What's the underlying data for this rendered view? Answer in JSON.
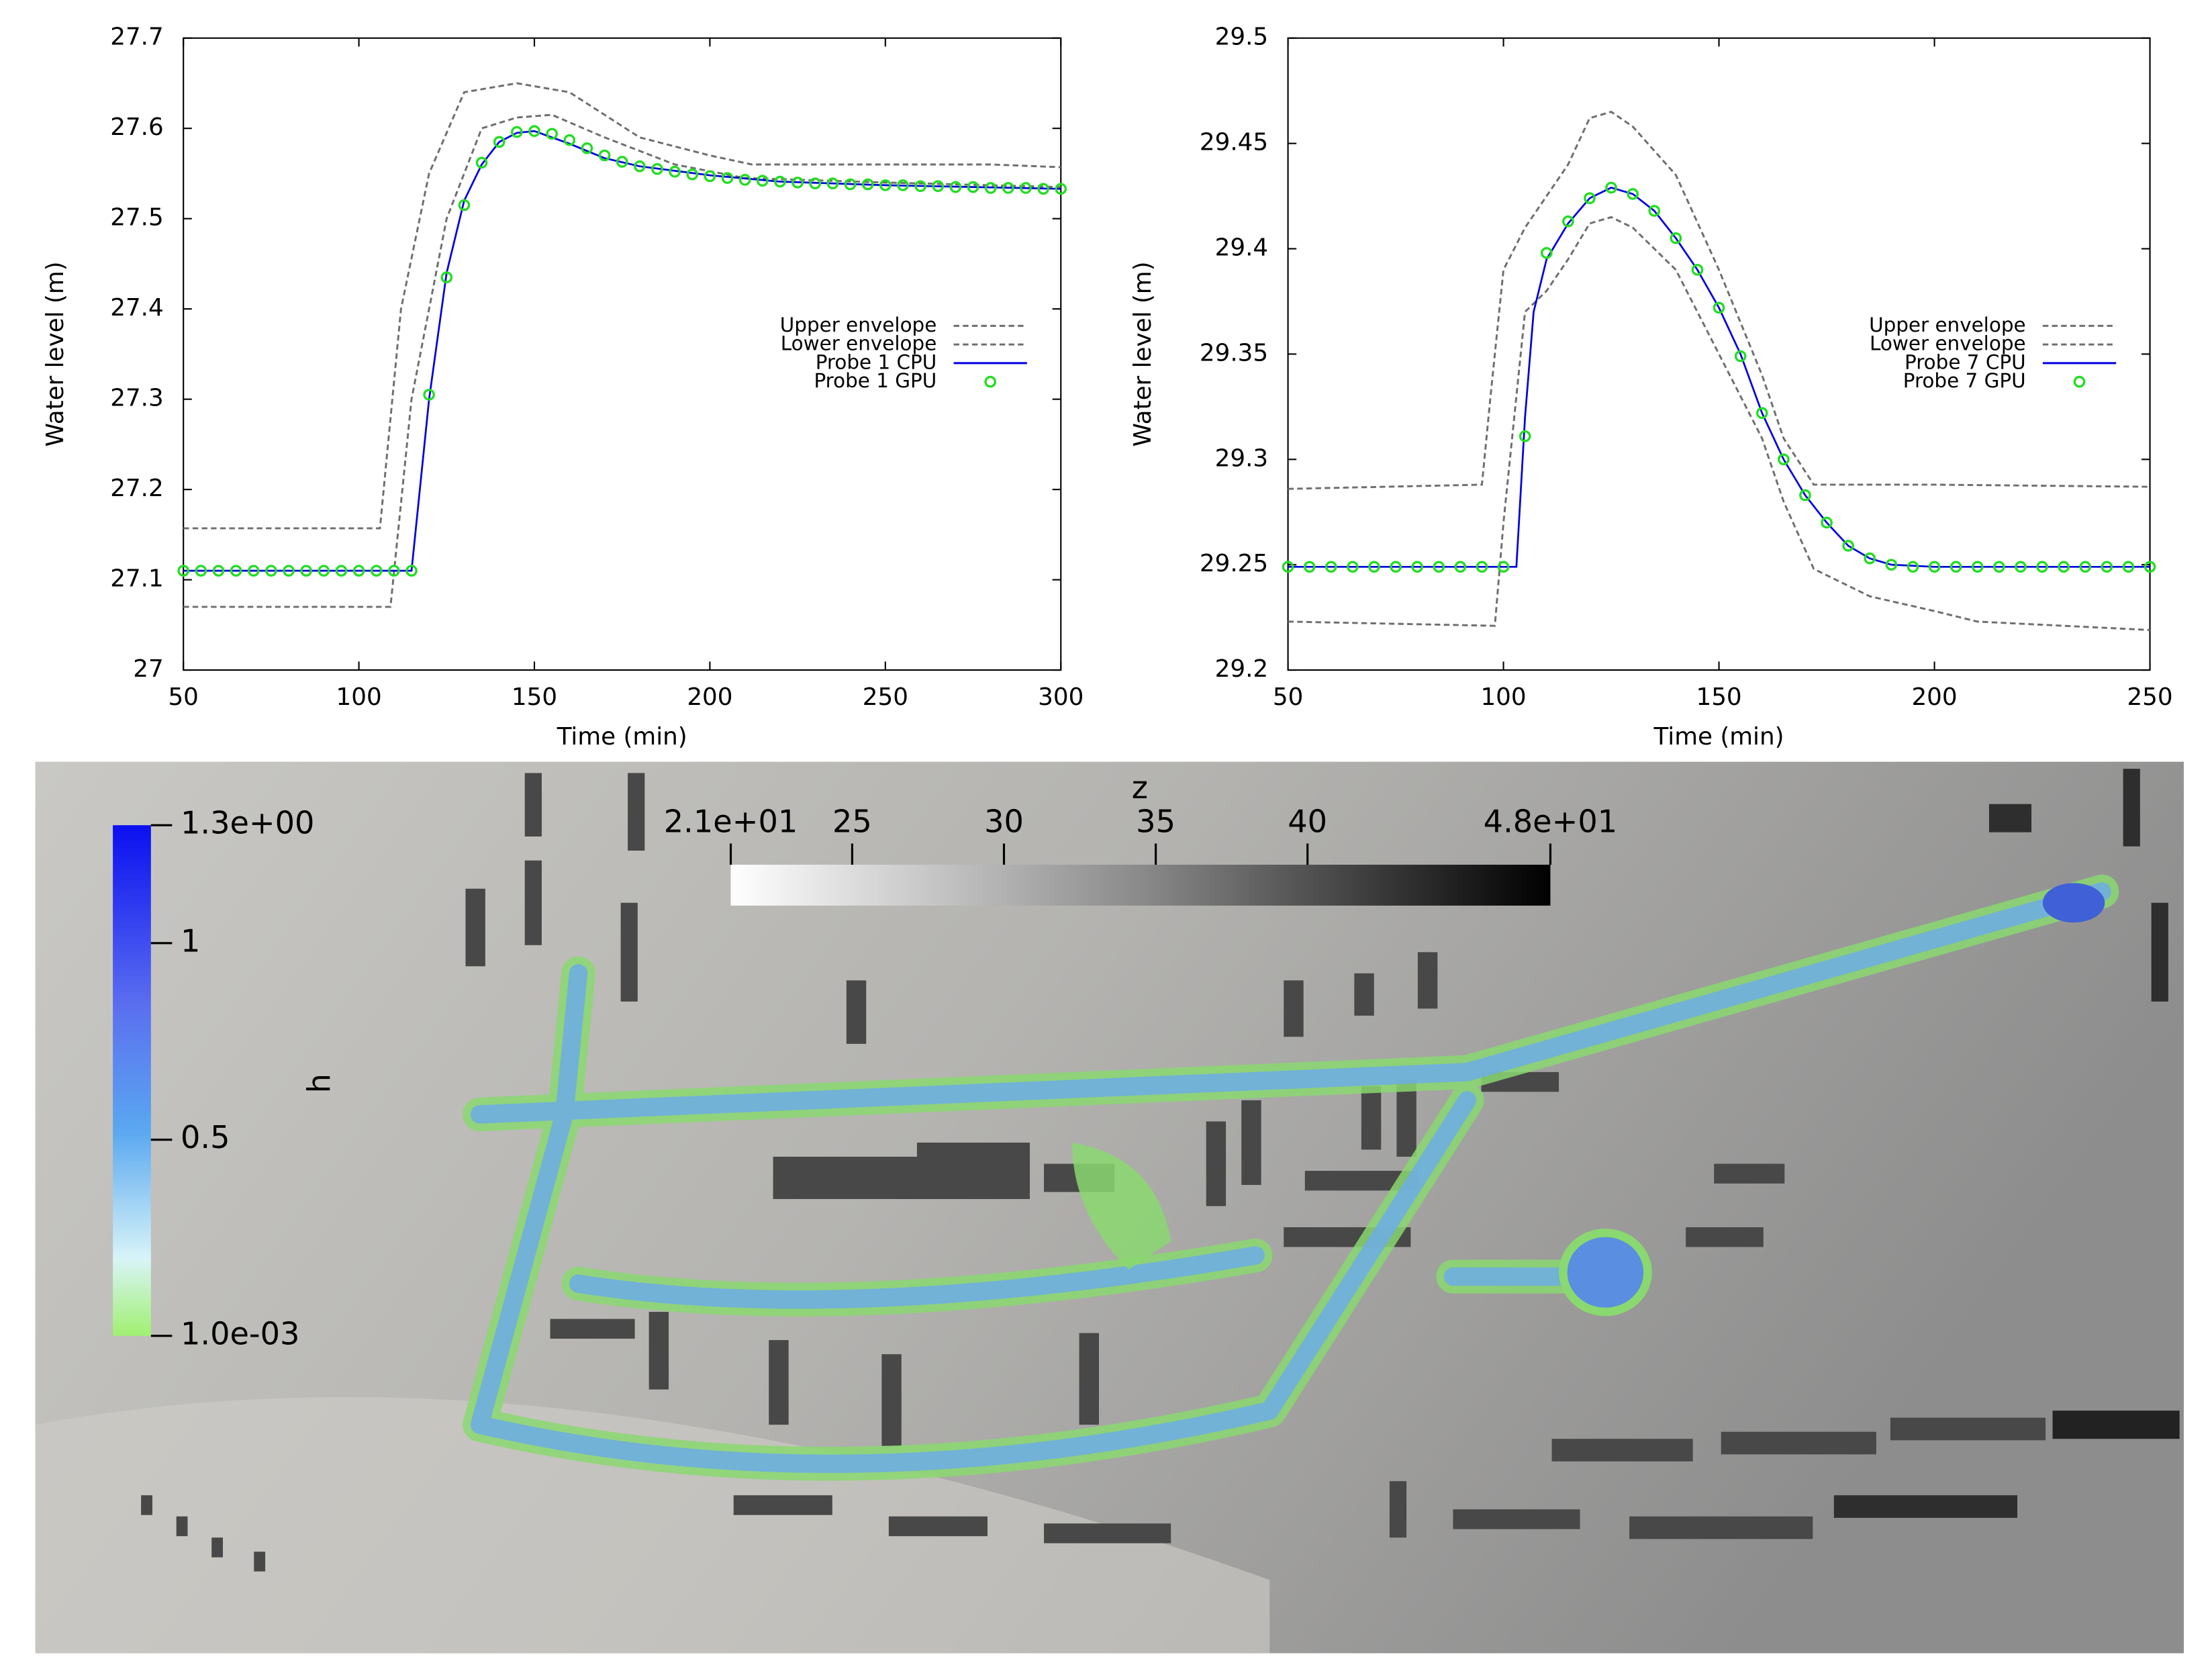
{
  "chart_data": [
    {
      "type": "line",
      "xlabel": "Time (min)",
      "ylabel": "Water level (m)",
      "xlim": [
        50,
        300
      ],
      "xticks": [
        50,
        100,
        150,
        200,
        250,
        300
      ],
      "ylim": [
        27,
        27.7
      ],
      "yticks": [
        27,
        27.1,
        27.2,
        27.3,
        27.4,
        27.5,
        27.6,
        27.7
      ],
      "legend": "right",
      "series": [
        {
          "name": "Upper envelope",
          "color": "#6e6e6e",
          "style": "dashed",
          "x": [
            50,
            106,
            112,
            120,
            130,
            145,
            160,
            180,
            200,
            212,
            250,
            280,
            300
          ],
          "values": [
            27.157,
            27.157,
            27.4,
            27.55,
            27.64,
            27.65,
            27.64,
            27.59,
            27.57,
            27.56,
            27.56,
            27.56,
            27.557
          ]
        },
        {
          "name": "Lower envelope",
          "color": "#6e6e6e",
          "style": "dashed",
          "x": [
            50,
            109,
            115,
            125,
            135,
            145,
            155,
            170,
            190,
            210,
            250,
            300
          ],
          "values": [
            27.07,
            27.07,
            27.3,
            27.5,
            27.6,
            27.612,
            27.615,
            27.59,
            27.56,
            27.545,
            27.54,
            27.535
          ]
        },
        {
          "name": "Probe 1 CPU",
          "color": "#0000e0",
          "style": "solid",
          "x": [
            50,
            115,
            120,
            125,
            130,
            135,
            140,
            145,
            150,
            155,
            160,
            170,
            180,
            200,
            220,
            250,
            300
          ],
          "values": [
            27.11,
            27.11,
            27.3,
            27.44,
            27.52,
            27.56,
            27.585,
            27.595,
            27.597,
            27.59,
            27.583,
            27.567,
            27.558,
            27.548,
            27.541,
            27.537,
            27.533
          ]
        },
        {
          "name": "Probe 1 GPU",
          "color": "#22dd22",
          "style": "markers",
          "x": [
            50,
            55,
            60,
            65,
            70,
            75,
            80,
            85,
            90,
            95,
            100,
            105,
            110,
            115,
            120,
            125,
            130,
            135,
            140,
            145,
            150,
            155,
            160,
            165,
            170,
            175,
            180,
            185,
            190,
            195,
            200,
            205,
            210,
            215,
            220,
            225,
            230,
            235,
            240,
            245,
            250,
            255,
            260,
            265,
            270,
            275,
            280,
            285,
            290,
            295,
            300
          ],
          "values": [
            27.11,
            27.11,
            27.11,
            27.11,
            27.11,
            27.11,
            27.11,
            27.11,
            27.11,
            27.11,
            27.11,
            27.11,
            27.11,
            27.11,
            27.305,
            27.435,
            27.515,
            27.562,
            27.585,
            27.596,
            27.597,
            27.594,
            27.587,
            27.578,
            27.57,
            27.563,
            27.558,
            27.555,
            27.552,
            27.549,
            27.547,
            27.545,
            27.543,
            27.542,
            27.541,
            27.54,
            27.539,
            27.539,
            27.538,
            27.538,
            27.537,
            27.537,
            27.536,
            27.536,
            27.535,
            27.535,
            27.534,
            27.534,
            27.534,
            27.533,
            27.533
          ]
        }
      ]
    },
    {
      "type": "line",
      "xlabel": "Time (min)",
      "ylabel": "Water level (m)",
      "xlim": [
        50,
        250
      ],
      "xticks": [
        50,
        100,
        150,
        200,
        250
      ],
      "ylim": [
        29.2,
        29.5
      ],
      "yticks": [
        29.2,
        29.25,
        29.3,
        29.35,
        29.4,
        29.45,
        29.5
      ],
      "legend": "right",
      "series": [
        {
          "name": "Upper envelope",
          "color": "#6e6e6e",
          "style": "dashed",
          "x": [
            50,
            95,
            97,
            100,
            105,
            115,
            120,
            125,
            130,
            140,
            150,
            160,
            165,
            172,
            200,
            250
          ],
          "values": [
            29.286,
            29.288,
            29.33,
            29.39,
            29.41,
            29.44,
            29.462,
            29.465,
            29.458,
            29.435,
            29.39,
            29.34,
            29.31,
            29.288,
            29.288,
            29.287
          ]
        },
        {
          "name": "Lower envelope",
          "color": "#6e6e6e",
          "style": "dashed",
          "x": [
            50,
            98,
            100,
            105,
            110,
            115,
            120,
            125,
            130,
            140,
            150,
            160,
            165,
            172,
            185,
            200,
            210,
            250
          ],
          "values": [
            29.223,
            29.221,
            29.27,
            29.37,
            29.38,
            29.395,
            29.412,
            29.415,
            29.41,
            29.39,
            29.35,
            29.31,
            29.28,
            29.248,
            29.235,
            29.228,
            29.223,
            29.219
          ]
        },
        {
          "name": "Probe 7 CPU",
          "color": "#0000e0",
          "style": "solid",
          "x": [
            50,
            103,
            105,
            107,
            110,
            115,
            120,
            125,
            130,
            135,
            140,
            145,
            150,
            155,
            160,
            165,
            170,
            175,
            180,
            185,
            190,
            200,
            250
          ],
          "values": [
            29.249,
            29.249,
            29.32,
            29.37,
            29.395,
            29.412,
            29.424,
            29.429,
            29.426,
            29.418,
            29.405,
            29.39,
            29.372,
            29.35,
            29.322,
            29.3,
            29.283,
            29.27,
            29.259,
            29.253,
            29.25,
            29.249,
            29.249
          ]
        },
        {
          "name": "Probe 7 GPU",
          "color": "#22dd22",
          "style": "markers",
          "x": [
            50,
            55,
            60,
            65,
            70,
            75,
            80,
            85,
            90,
            95,
            100,
            105,
            110,
            115,
            120,
            125,
            130,
            135,
            140,
            145,
            150,
            155,
            160,
            165,
            170,
            175,
            180,
            185,
            190,
            195,
            200,
            205,
            210,
            215,
            220,
            225,
            230,
            235,
            240,
            245,
            250
          ],
          "values": [
            29.249,
            29.249,
            29.249,
            29.249,
            29.249,
            29.249,
            29.249,
            29.249,
            29.249,
            29.249,
            29.249,
            29.311,
            29.398,
            29.413,
            29.424,
            29.429,
            29.426,
            29.418,
            29.405,
            29.39,
            29.372,
            29.349,
            29.322,
            29.3,
            29.283,
            29.27,
            29.259,
            29.253,
            29.25,
            29.249,
            29.249,
            29.249,
            29.249,
            29.249,
            29.249,
            29.249,
            29.249,
            29.249,
            29.249,
            29.249,
            29.249
          ]
        }
      ]
    }
  ],
  "map": {
    "h_colorbar": {
      "title": "h",
      "range": [
        0.001,
        1.3
      ],
      "ticks": [
        {
          "value": 1.3,
          "label": "1.3e+00"
        },
        1,
        0.5,
        {
          "value": 0.001,
          "label": "1.0e-03"
        }
      ]
    },
    "z_colorbar": {
      "title": "z",
      "range": [
        21,
        48
      ],
      "ticks": [
        {
          "value": 21,
          "label": "2.1e+01"
        },
        25,
        30,
        35,
        40,
        {
          "value": 48,
          "label": "4.8e+01"
        }
      ]
    }
  }
}
